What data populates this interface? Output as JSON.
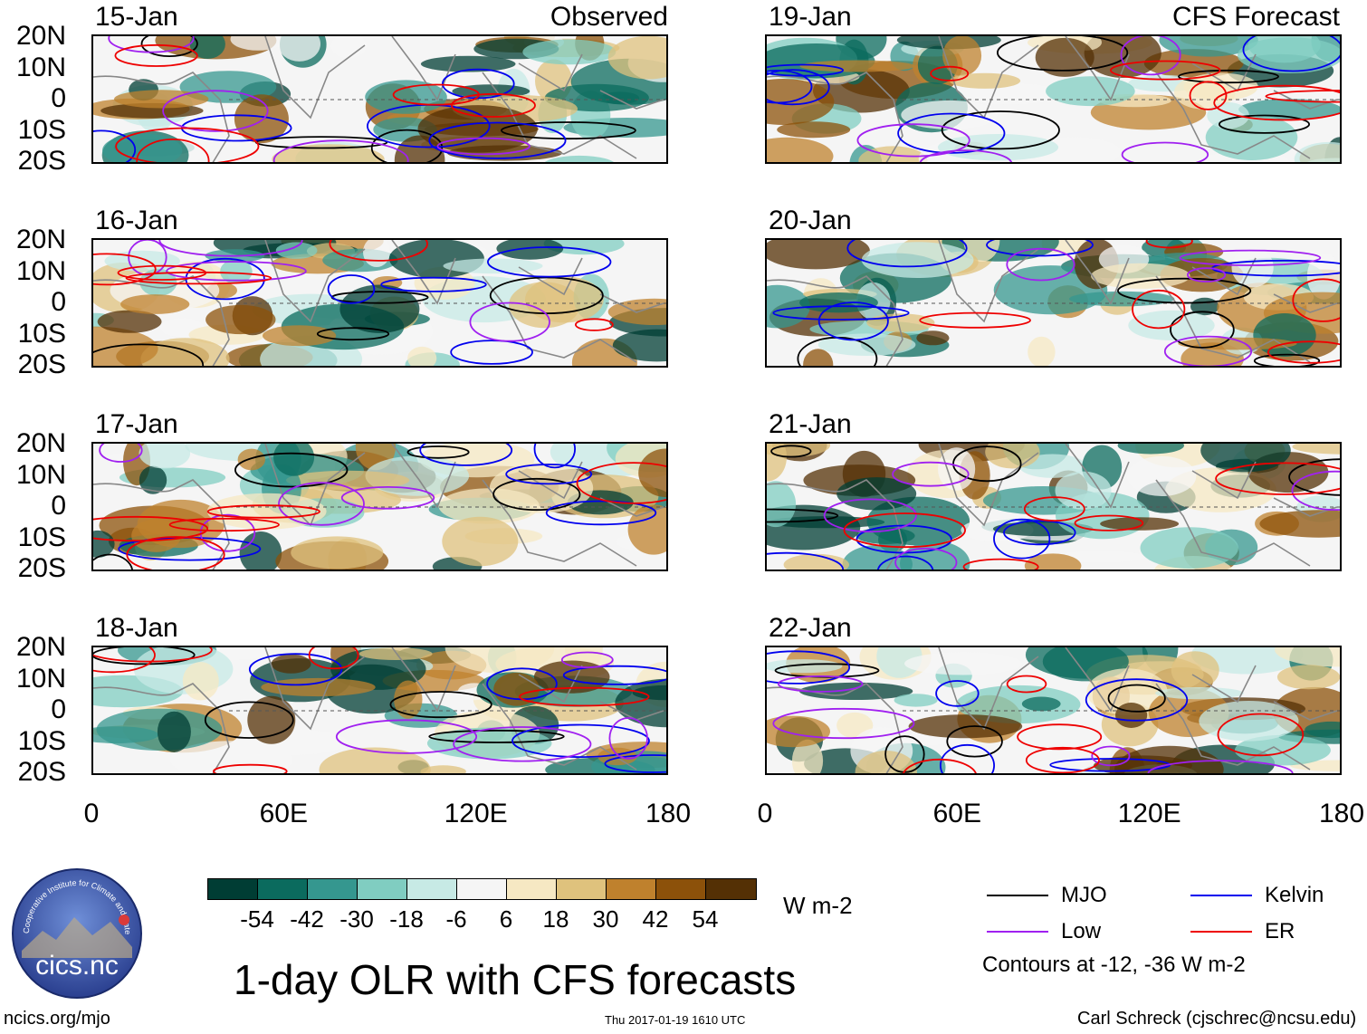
{
  "headers": {
    "observed": "Observed",
    "forecast": "CFS Forecast"
  },
  "observed_dates": [
    "15-Jan",
    "16-Jan",
    "17-Jan",
    "18-Jan"
  ],
  "forecast_dates": [
    "19-Jan",
    "20-Jan",
    "21-Jan",
    "22-Jan"
  ],
  "lat_labels": [
    "20N",
    "10N",
    "0",
    "10S",
    "20S"
  ],
  "lon_labels": [
    "0",
    "60E",
    "120E",
    "180"
  ],
  "colorbar": {
    "colors": [
      "#003d34",
      "#0b6b5e",
      "#35978f",
      "#80cdc1",
      "#c7eae5",
      "#f5f5f5",
      "#f6e8c3",
      "#dfc27d",
      "#bf812d",
      "#8c510a",
      "#543005"
    ],
    "ticks": [
      "-54",
      "-42",
      "-30",
      "-18",
      "-6",
      "6",
      "18",
      "30",
      "42",
      "54"
    ],
    "units": "W m-2"
  },
  "title": "1-day OLR with CFS forecasts",
  "footer": {
    "url": "ncics.org/mjo",
    "timestamp": "Thu 2017-01-19 1610 UTC",
    "author": "Carl Schreck (cjschrec@ncsu.edu)"
  },
  "logo": {
    "text": "cics.nc",
    "arc": "Cooperative Institute for Climate and Satellites"
  },
  "legend": {
    "items": [
      {
        "label": "MJO",
        "color": "#000000"
      },
      {
        "label": "Kelvin",
        "color": "#0000ee"
      },
      {
        "label": "Low",
        "color": "#a020f0"
      },
      {
        "label": "ER",
        "color": "#ee0000"
      }
    ],
    "note": "Contours at -12, -36 W m-2"
  }
}
